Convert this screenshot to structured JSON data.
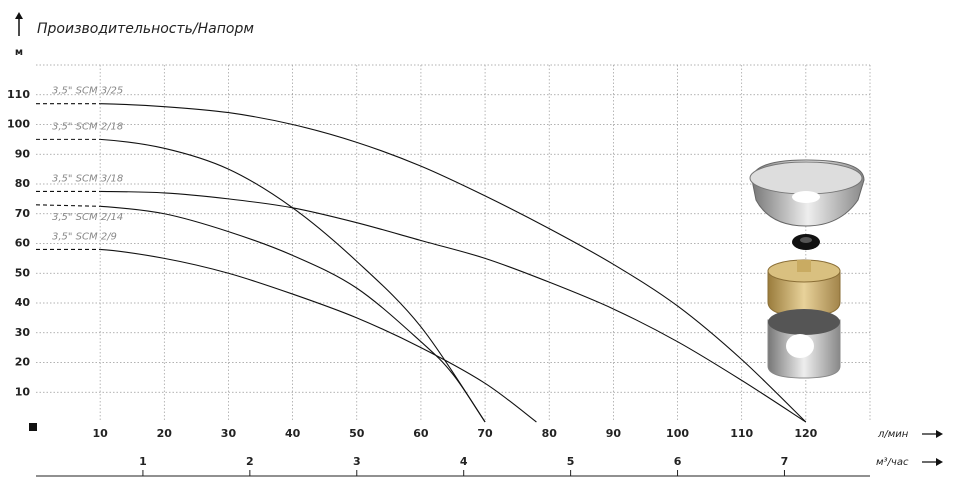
{
  "chart_data": {
    "type": "line",
    "title": "Производительность/Напорм",
    "y_label": "м",
    "x_label": "л/мин",
    "x2_label": "м³/час",
    "xlim": [
      0,
      130
    ],
    "xticks": [
      10,
      20,
      30,
      40,
      50,
      60,
      70,
      80,
      90,
      100,
      110,
      120
    ],
    "ylim": [
      0,
      120
    ],
    "yticks": [
      10,
      20,
      30,
      40,
      50,
      60,
      70,
      80,
      90,
      100,
      110
    ],
    "x2lim": [
      0,
      7.8
    ],
    "x2ticks": [
      1,
      2,
      3,
      4,
      5,
      6,
      7
    ],
    "grid": true,
    "series": [
      {
        "name": "3,5\" SCM 3/25",
        "color": "#111111",
        "x": [
          0,
          10,
          20,
          30,
          40,
          50,
          60,
          70,
          80,
          90,
          100,
          110,
          120
        ],
        "values": [
          107,
          107,
          106,
          104,
          100,
          94,
          86,
          76,
          65,
          53,
          39,
          21,
          0
        ]
      },
      {
        "name": "3,5\" SCM 2/18",
        "color": "#111111",
        "x": [
          0,
          10,
          20,
          30,
          40,
          50,
          60,
          70
        ],
        "values": [
          95,
          95,
          92,
          85,
          72,
          54,
          32,
          0
        ]
      },
      {
        "name": "3,5\" SCM 3/18",
        "color": "#111111",
        "x": [
          0,
          10,
          20,
          30,
          40,
          50,
          60,
          70,
          80,
          90,
          100,
          110,
          120
        ],
        "values": [
          77.5,
          77.5,
          77,
          75,
          72,
          67,
          61,
          55,
          47,
          38,
          27,
          14,
          0
        ]
      },
      {
        "name": "3,5\" SCM 2/14",
        "color": "#111111",
        "x": [
          0,
          10,
          20,
          30,
          40,
          50,
          60,
          65,
          70
        ],
        "values": [
          73,
          72.5,
          70,
          64,
          56,
          45,
          27,
          16,
          0
        ]
      },
      {
        "name": "3,5\" SCM 2/9",
        "color": "#111111",
        "x": [
          0,
          10,
          20,
          30,
          40,
          50,
          60,
          70,
          78
        ],
        "values": [
          58,
          58,
          55,
          50,
          43,
          35,
          25,
          13,
          0
        ]
      }
    ]
  }
}
